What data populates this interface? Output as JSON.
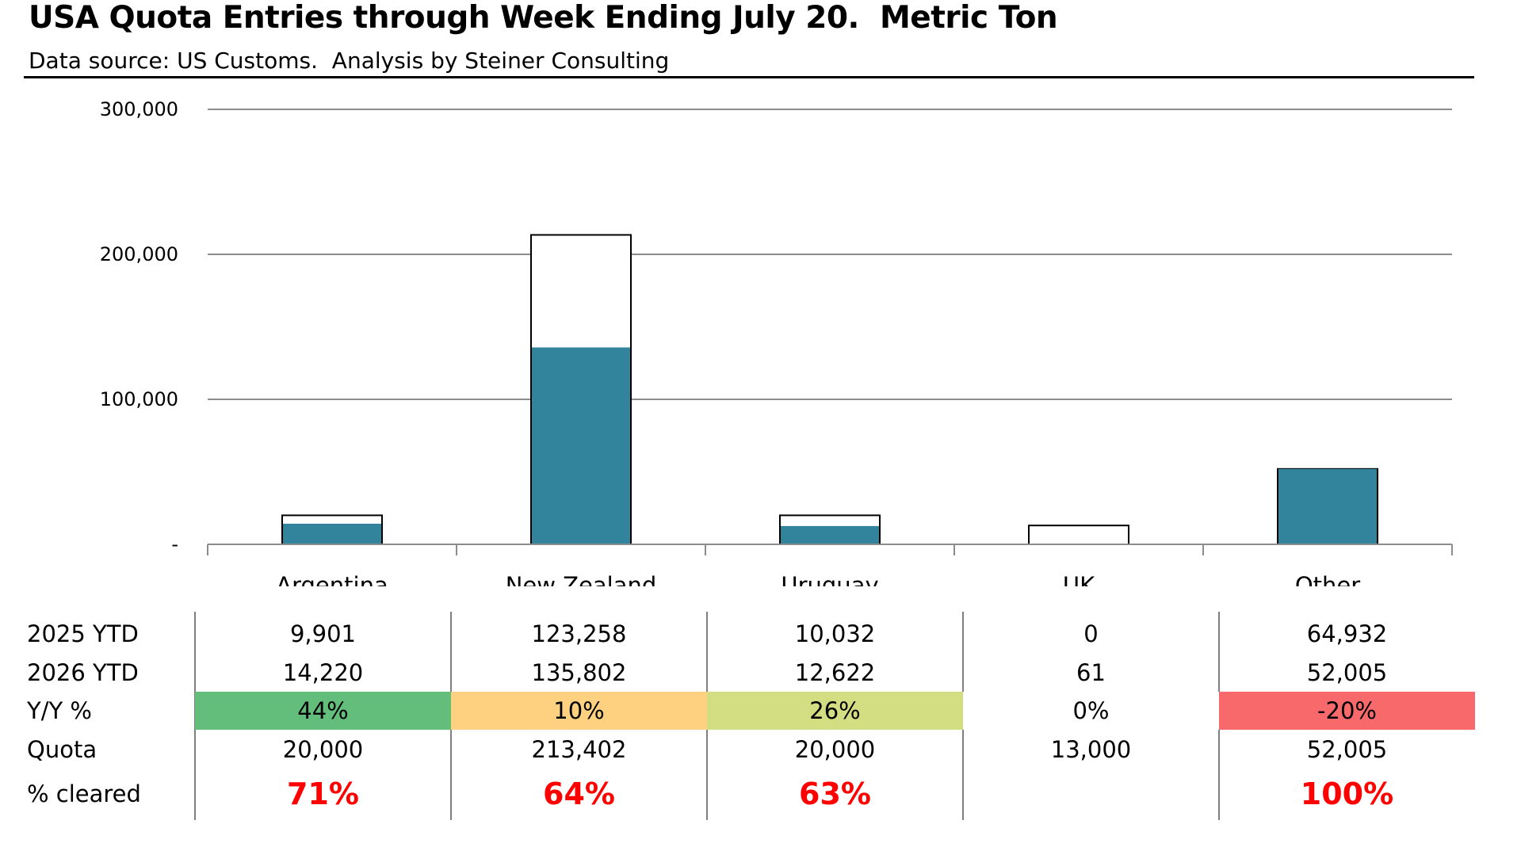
{
  "title": "USA Quota Entries through Week Ending July 20.  Metric Ton",
  "subtitle": "Data source: US Customs.  Analysis by Steiner Consulting",
  "chart_data": {
    "type": "bar",
    "categories": [
      "Argentina",
      "New Zealand",
      "Uruguay",
      "UK",
      "Other"
    ],
    "series": [
      {
        "name": "",
        "values": [
          20000,
          213402,
          20000,
          13000,
          52005
        ]
      },
      {
        "name": "",
        "values": [
          14220,
          135802,
          12622,
          61,
          52005
        ]
      }
    ],
    "ylim": [
      0,
      300000
    ],
    "yticks": [
      0,
      100000,
      200000,
      300000
    ],
    "ytick_labels": [
      "-",
      "100,000",
      "200,000",
      "300,000"
    ],
    "grid": true,
    "colors": {
      "filled": "#31849B",
      "outline": "#000000",
      "gridline": "#8c8c8c"
    }
  },
  "table": {
    "row_labels": [
      "2025 YTD",
      "2026 YTD",
      "Y/Y %",
      "Quota",
      "% cleared"
    ],
    "rows": [
      [
        "9,901",
        "123,258",
        "10,032",
        "0",
        "64,932"
      ],
      [
        "14,220",
        "135,802",
        "12,622",
        "61",
        "52,005"
      ],
      [
        "44%",
        "10%",
        "26%",
        "0%",
        "-20%"
      ],
      [
        "20,000",
        "213,402",
        "20,000",
        "13,000",
        "52,005"
      ],
      [
        "71%",
        "64%",
        "63%",
        "",
        "100%"
      ]
    ],
    "yoy_colors": [
      "#63BE7B",
      "#FDD17F",
      "#D2DE81",
      "#ffffff",
      "#F8696B"
    ],
    "pct_color": "#ff0000"
  }
}
